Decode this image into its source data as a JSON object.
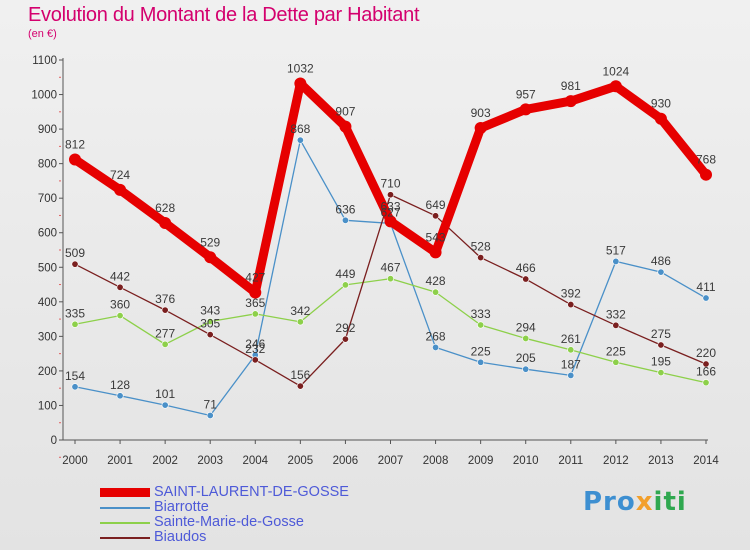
{
  "header": {
    "title": "Evolution du Montant de la Dette par Habitant",
    "unit": "(en €)"
  },
  "logo": {
    "text": "Proxiti",
    "parts": [
      "Pro",
      "x",
      "iti"
    ]
  },
  "colors": {
    "title": "#d4006e",
    "legend_text": "#4e5ad8",
    "saint_laurent": "#e60000",
    "biarrotte": "#4a90c8",
    "sainte_marie": "#8dd04a",
    "biaudos": "#7a1f1f"
  },
  "chart_data": {
    "type": "line",
    "title": "Evolution du Montant de la Dette par Habitant",
    "subtitle": "(en €)",
    "x": [
      "2000",
      "2001",
      "2002",
      "2003",
      "2004",
      "2005",
      "2006",
      "2007",
      "2008",
      "2009",
      "2010",
      "2011",
      "2012",
      "2013",
      "2014"
    ],
    "ylim": [
      0,
      1100
    ],
    "yticks": [
      0,
      100,
      200,
      300,
      400,
      500,
      600,
      700,
      800,
      900,
      1000,
      1100
    ],
    "grid": false,
    "legend_placement": "bottom-left",
    "series": [
      {
        "name": "SAINT-LAURENT-DE-GOSSE",
        "color": "#e60000",
        "values": [
          812,
          724,
          628,
          529,
          427,
          1032,
          907,
          633,
          543,
          903,
          957,
          981,
          1024,
          930,
          768
        ]
      },
      {
        "name": "Biarrotte",
        "color": "#4a90c8",
        "values": [
          154,
          128,
          101,
          71,
          246,
          868,
          636,
          627,
          268,
          225,
          205,
          187,
          517,
          486,
          411
        ]
      },
      {
        "name": "Sainte-Marie-de-Gosse",
        "color": "#8dd04a",
        "values": [
          335,
          360,
          277,
          343,
          365,
          342,
          449,
          467,
          428,
          333,
          294,
          261,
          225,
          195,
          166
        ]
      },
      {
        "name": "Biaudos",
        "color": "#7a1f1f",
        "values": [
          509,
          442,
          376,
          305,
          232,
          156,
          292,
          710,
          649,
          528,
          466,
          392,
          332,
          275,
          220
        ]
      }
    ]
  }
}
